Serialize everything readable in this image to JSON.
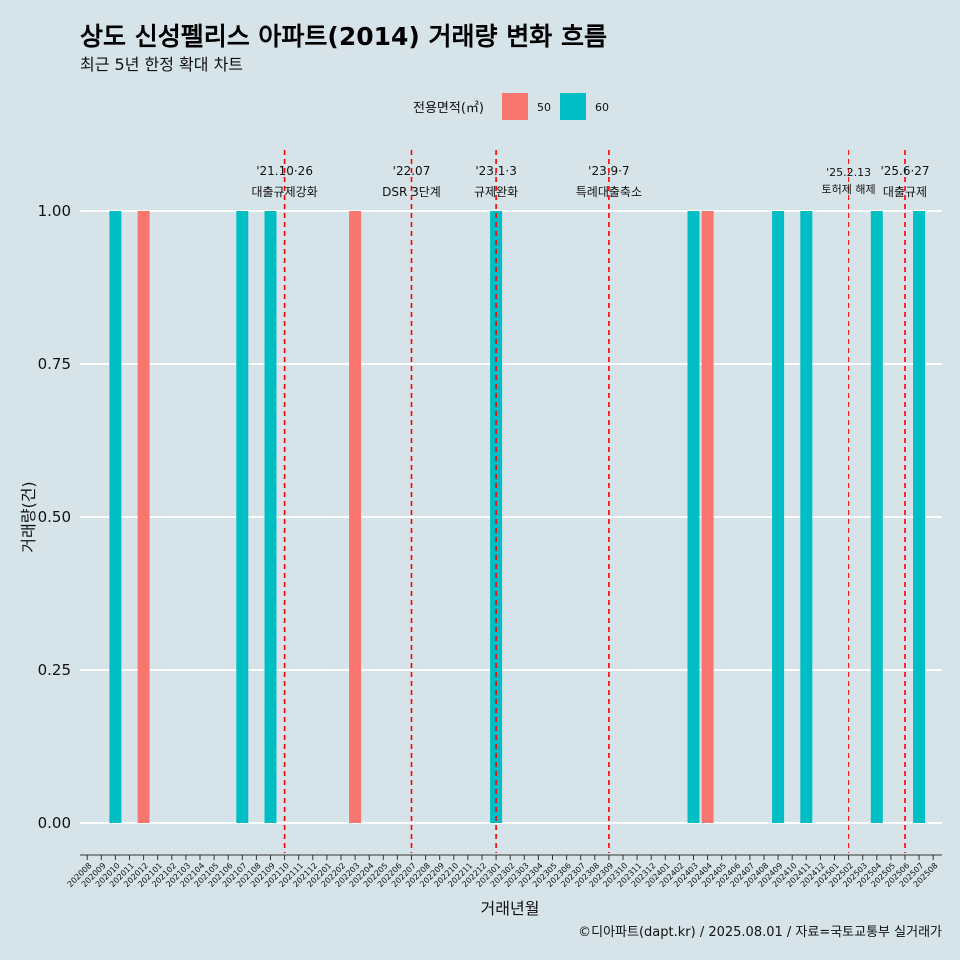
{
  "chart_data": {
    "type": "bar",
    "title": "상도 신성펠리스 아파트(2014) 거래량 변화 흐름",
    "subtitle": "최근 5년 한정 확대 차트",
    "xlabel": "거래년월",
    "ylabel": "거래량(건)",
    "ylim": [
      0,
      1.0
    ],
    "yticks": [
      "0.00",
      "0.25",
      "0.50",
      "0.75",
      "1.00"
    ],
    "grid": "horizontal",
    "legend": {
      "title": "전용면적(㎡)",
      "position": "top",
      "items": [
        {
          "label": "50",
          "color": "#f8766d"
        },
        {
          "label": "60",
          "color": "#00bfc4"
        }
      ]
    },
    "categories": [
      "202008",
      "202009",
      "202010",
      "202011",
      "202012",
      "202101",
      "202102",
      "202103",
      "202104",
      "202105",
      "202106",
      "202107",
      "202108",
      "202109",
      "202110",
      "202111",
      "202112",
      "202201",
      "202202",
      "202203",
      "202204",
      "202205",
      "202206",
      "202207",
      "202208",
      "202209",
      "202210",
      "202211",
      "202212",
      "202301",
      "202302",
      "202303",
      "202304",
      "202305",
      "202306",
      "202307",
      "202308",
      "202309",
      "202310",
      "202311",
      "202312",
      "202401",
      "202402",
      "202403",
      "202404",
      "202405",
      "202406",
      "202407",
      "202408",
      "202409",
      "202410",
      "202411",
      "202412",
      "202501",
      "202502",
      "202503",
      "202504",
      "202505",
      "202506",
      "202507",
      "202508"
    ],
    "bars": [
      {
        "month": "202010",
        "area": "60",
        "value": 1
      },
      {
        "month": "202012",
        "area": "50",
        "value": 1
      },
      {
        "month": "202107",
        "area": "60",
        "value": 1
      },
      {
        "month": "202109",
        "area": "60",
        "value": 1
      },
      {
        "month": "202203",
        "area": "50",
        "value": 1
      },
      {
        "month": "202301",
        "area": "60",
        "value": 1
      },
      {
        "month": "202403",
        "area": "60",
        "value": 1
      },
      {
        "month": "202404",
        "area": "50",
        "value": 1
      },
      {
        "month": "202409",
        "area": "60",
        "value": 1
      },
      {
        "month": "202411",
        "area": "60",
        "value": 1
      },
      {
        "month": "202504",
        "area": "60",
        "value": 1
      },
      {
        "month": "202507",
        "area": "60",
        "value": 1
      }
    ],
    "events": [
      {
        "date": "'21.10·26",
        "label": "대출규제강화",
        "month": "202110",
        "style": "bold"
      },
      {
        "date": "'22.07",
        "label": "DSR 3단계",
        "month": "202207",
        "style": "bold"
      },
      {
        "date": "'23.1·3",
        "label": "규제완화",
        "month": "202301",
        "style": "bold"
      },
      {
        "date": "'23.9·7",
        "label": "특례대출축소",
        "month": "202309",
        "style": "bold"
      },
      {
        "date": "'25.2.13",
        "label": "토허제 해제",
        "month": "202502",
        "style": "thin"
      },
      {
        "date": "'25.6·27",
        "label": "대출규제",
        "month": "202506",
        "style": "bold"
      }
    ],
    "caption": "©디아파트(dapt.kr) / 2025.08.01 / 자료=국토교통부 실거래가"
  }
}
